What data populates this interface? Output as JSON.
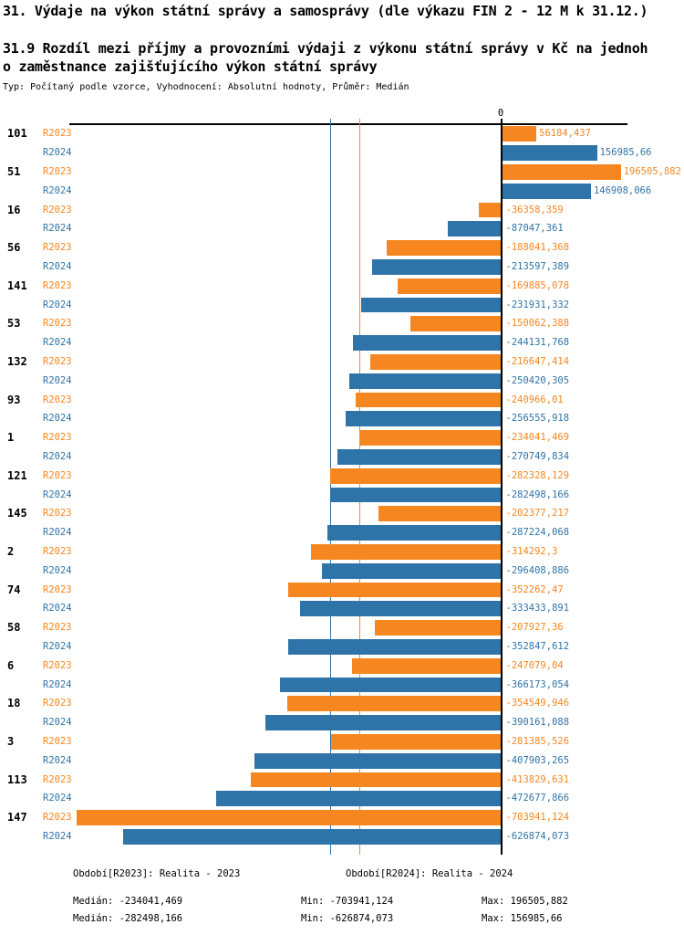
{
  "header": {
    "title": "31. Výdaje na výkon státní správy a samosprávy (dle výkazu FIN 2 - 12 M k 31.12.)",
    "subtitle_lines": [
      "31.9 Rozdíl mezi příjmy a provozními výdaji z výkonu státní správy v Kč na jednoh",
      "o zaměstnance zajišťujícího výkon státní správy"
    ],
    "meta": "Typ: Počítaný podle vzorce, Vyhodnocení: Absolutní hodnoty, Průměr: Medián"
  },
  "chart_data": {
    "type": "bar",
    "orientation": "horizontal_grouped",
    "zero_tick_label": "0",
    "axis_range": [
      -716000,
      208000
    ],
    "grid": false,
    "legend_position": "bottom",
    "categories": [
      "101",
      "51",
      "16",
      "56",
      "141",
      "53",
      "132",
      "93",
      "1",
      "121",
      "145",
      "2",
      "74",
      "58",
      "6",
      "18",
      "3",
      "113",
      "147"
    ],
    "series": [
      {
        "name": "R2023",
        "legend_label": "Období[R2023]: Realita - 2023",
        "color": "#f6861f",
        "values": [
          56184.437,
          196505.882,
          -36358.359,
          -188041.368,
          -169885.078,
          -150062.388,
          -216647.414,
          -240966.01,
          -234041.469,
          -282328.129,
          -202377.217,
          -314292.3,
          -352262.47,
          -207927.36,
          -247079.04,
          -354549.946,
          -281385.526,
          -413829.631,
          -703941.124
        ],
        "value_labels": [
          "56184,437",
          "196505,882",
          "-36358,359",
          "-188041,368",
          "-169885,078",
          "-150062,388",
          "-216647,414",
          "-240966,01",
          "-234041,469",
          "-282328,129",
          "-202377,217",
          "-314292,3",
          "-352262,47",
          "-207927,36",
          "-247079,04",
          "-354549,946",
          "-281385,526",
          "-413829,631",
          "-703941,124"
        ],
        "median": -234041.469,
        "stats": {
          "median": "Medián: -234041,469",
          "min": "Min: -703941,124",
          "max": "Max: 196505,882"
        }
      },
      {
        "name": "R2024",
        "legend_label": "Období[R2024]: Realita - 2024",
        "color": "#2e74a8",
        "values": [
          156985.66,
          146908.066,
          -87047.361,
          -213597.389,
          -231931.332,
          -244131.768,
          -250420.305,
          -256555.918,
          -270749.834,
          -282498.166,
          -287224.068,
          -296408.886,
          -333433.891,
          -352847.612,
          -366173.054,
          -390161.088,
          -407903.265,
          -472677.866,
          -626874.073
        ],
        "value_labels": [
          "156985,66",
          "146908,066",
          "-87047,361",
          "-213597,389",
          "-231931,332",
          "-244131,768",
          "-250420,305",
          "-256555,918",
          "-270749,834",
          "-282498,166",
          "-287224,068",
          "-296408,886",
          "-333433,891",
          "-352847,612",
          "-366173,054",
          "-390161,088",
          "-407903,265",
          "-472677,866",
          "-626874,073"
        ],
        "median": -282498.166,
        "stats": {
          "median": "Medián: -282498,166",
          "min": "Min: -626874,073",
          "max": "Max: 156985,66"
        }
      }
    ]
  }
}
